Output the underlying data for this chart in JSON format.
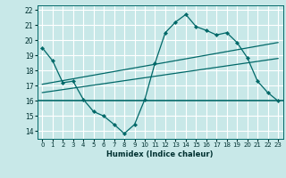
{
  "title": "",
  "xlabel": "Humidex (Indice chaleur)",
  "bg_color": "#c8e8e8",
  "grid_color": "#ffffff",
  "line_color": "#006868",
  "ylim": [
    13.5,
    22.3
  ],
  "xlim": [
    -0.5,
    23.5
  ],
  "yticks": [
    14,
    15,
    16,
    17,
    18,
    19,
    20,
    21,
    22
  ],
  "xticks": [
    0,
    1,
    2,
    3,
    4,
    5,
    6,
    7,
    8,
    9,
    10,
    11,
    12,
    13,
    14,
    15,
    16,
    17,
    18,
    19,
    20,
    21,
    22,
    23
  ],
  "line1_x": [
    0,
    1,
    2,
    3,
    4,
    5,
    6,
    7,
    8,
    9,
    10,
    11,
    12,
    13,
    14,
    15,
    16,
    17,
    18,
    19,
    20,
    21,
    22,
    23
  ],
  "line1_y": [
    19.5,
    18.65,
    17.2,
    17.3,
    16.1,
    15.3,
    15.0,
    14.45,
    13.85,
    14.45,
    16.1,
    18.5,
    20.5,
    21.2,
    21.7,
    20.9,
    20.65,
    20.35,
    20.5,
    19.85,
    18.85,
    17.3,
    16.55,
    16.0
  ],
  "line2_x": [
    0,
    23
  ],
  "line2_y": [
    17.1,
    19.85
  ],
  "line3_x": [
    0,
    23
  ],
  "line3_y": [
    16.55,
    18.8
  ],
  "line4_x": [
    -0.5,
    23.5
  ],
  "line4_y": [
    16.0,
    16.0
  ]
}
